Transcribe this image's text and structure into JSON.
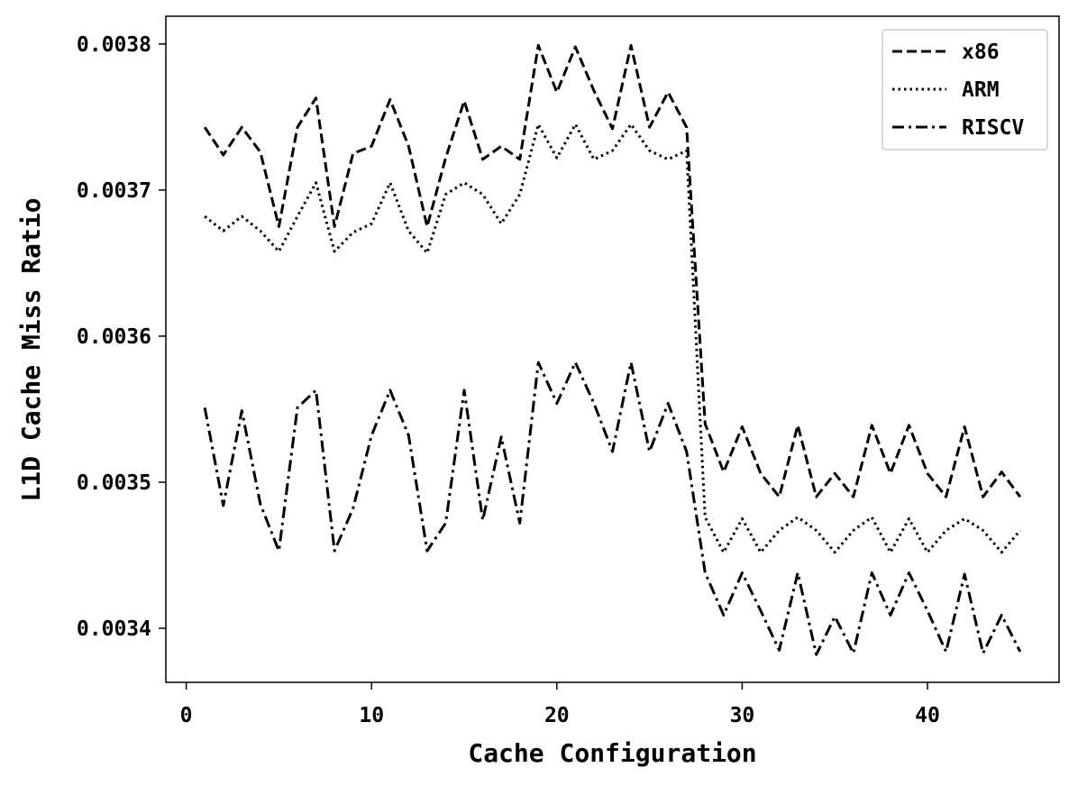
{
  "chart_data": {
    "type": "line",
    "xlabel": "Cache Configuration",
    "ylabel": "L1D Cache Miss Ratio",
    "xlim": [
      -1.1,
      47.1
    ],
    "ylim": [
      0.003363,
      0.003819
    ],
    "xticks": [
      0,
      10,
      20,
      30,
      40
    ],
    "xtick_labels": [
      "0",
      "10",
      "20",
      "30",
      "40"
    ],
    "yticks": [
      0.0034,
      0.0035,
      0.0036,
      0.0037,
      0.0038
    ],
    "ytick_labels": [
      "0.0034",
      "0.0035",
      "0.0036",
      "0.0037",
      "0.0038"
    ],
    "grid": false,
    "legend_position": "top-right",
    "x": [
      1,
      2,
      3,
      4,
      5,
      6,
      7,
      8,
      9,
      10,
      11,
      12,
      13,
      14,
      15,
      16,
      17,
      18,
      19,
      20,
      21,
      22,
      23,
      24,
      25,
      26,
      27,
      28,
      29,
      30,
      31,
      32,
      33,
      34,
      35,
      36,
      37,
      38,
      39,
      40,
      41,
      42,
      43,
      44,
      45
    ],
    "series": [
      {
        "name": "x86",
        "style": "dashed",
        "color": "#000000",
        "values": [
          0.003743,
          0.003724,
          0.003743,
          0.003726,
          0.003675,
          0.003743,
          0.003763,
          0.003675,
          0.003725,
          0.00373,
          0.003762,
          0.00373,
          0.003675,
          0.003722,
          0.003761,
          0.003721,
          0.00373,
          0.003721,
          0.003799,
          0.003767,
          0.003798,
          0.003768,
          0.003742,
          0.003799,
          0.003743,
          0.003767,
          0.003743,
          0.00354,
          0.003507,
          0.003538,
          0.003506,
          0.00349,
          0.003539,
          0.00349,
          0.003506,
          0.00349,
          0.003539,
          0.003506,
          0.003539,
          0.003506,
          0.00349,
          0.003538,
          0.00349,
          0.003507,
          0.00349
        ]
      },
      {
        "name": "ARM",
        "style": "dotted",
        "color": "#000000",
        "values": [
          0.003682,
          0.003672,
          0.003682,
          0.003672,
          0.003658,
          0.003682,
          0.003705,
          0.003658,
          0.003671,
          0.003677,
          0.003705,
          0.003672,
          0.003657,
          0.003697,
          0.003705,
          0.003697,
          0.003677,
          0.003697,
          0.003745,
          0.003722,
          0.003745,
          0.003721,
          0.003727,
          0.003745,
          0.003727,
          0.003721,
          0.003727,
          0.003476,
          0.003452,
          0.003475,
          0.003452,
          0.003467,
          0.003476,
          0.003467,
          0.003452,
          0.003467,
          0.003476,
          0.003452,
          0.003475,
          0.003452,
          0.003467,
          0.003475,
          0.003467,
          0.003452,
          0.003467
        ]
      },
      {
        "name": "RISCV",
        "style": "dashdot",
        "color": "#000000",
        "values": [
          0.003551,
          0.003484,
          0.003549,
          0.003485,
          0.003453,
          0.003551,
          0.003563,
          0.003453,
          0.003482,
          0.003532,
          0.003563,
          0.003532,
          0.003453,
          0.003472,
          0.003563,
          0.003474,
          0.003531,
          0.003472,
          0.003582,
          0.003554,
          0.003582,
          0.003554,
          0.003521,
          0.003582,
          0.003521,
          0.003554,
          0.003521,
          0.003438,
          0.003409,
          0.003438,
          0.003412,
          0.003385,
          0.003438,
          0.003382,
          0.003408,
          0.003383,
          0.003438,
          0.003409,
          0.003438,
          0.003412,
          0.003384,
          0.003437,
          0.003383,
          0.003409,
          0.003384
        ]
      }
    ]
  }
}
